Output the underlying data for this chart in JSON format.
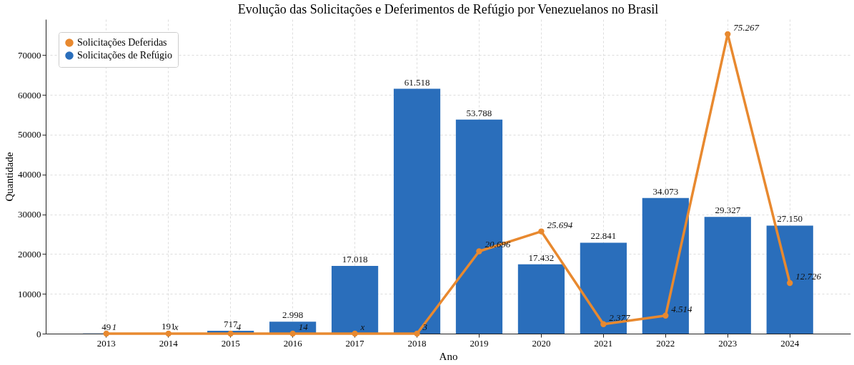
{
  "chart_data": {
    "type": "bar",
    "title": "Evolução das Solicitações e Deferimentos de Refúgio por Venezuelanos no Brasil",
    "xlabel": "Ano",
    "ylabel": "Quantidade",
    "categories": [
      "2013",
      "2014",
      "2015",
      "2016",
      "2017",
      "2018",
      "2019",
      "2020",
      "2021",
      "2022",
      "2023",
      "2024"
    ],
    "series": [
      {
        "name": "Solicitações Deferidas",
        "type": "line",
        "color": "#e8892f",
        "marker": "circle",
        "values": [
          1,
          0,
          4,
          14,
          0,
          3,
          20696,
          25694,
          2377,
          4514,
          75267,
          12726
        ],
        "value_labels": [
          "1",
          "x",
          "4",
          "14",
          "x",
          "3",
          "20.696",
          "25.694",
          "2.377",
          "4.514",
          "75.267",
          "12.726"
        ]
      },
      {
        "name": "Solicitações de Refúgio",
        "color": "#2a6ebb",
        "values": [
          49,
          191,
          717,
          2998,
          17018,
          61518,
          53788,
          17432,
          22841,
          34073,
          29327,
          27150
        ],
        "value_labels": [
          "49",
          "191",
          "717",
          "2.998",
          "17.018",
          "61.518",
          "53.788",
          "17.432",
          "22.841",
          "34.073",
          "29.327",
          "27.150"
        ]
      }
    ],
    "ylim": [
      0,
      79000
    ],
    "yticks": [
      0,
      10000,
      20000,
      30000,
      40000,
      50000,
      60000,
      70000
    ],
    "grid": true,
    "legend": "top left"
  }
}
